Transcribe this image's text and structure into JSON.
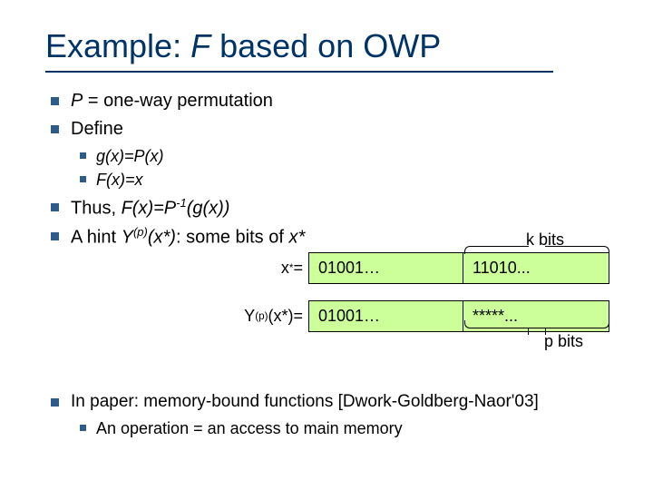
{
  "title_pre": "Example: ",
  "title_F": "F",
  "title_post": " based on OWP",
  "b1_pre": "P",
  "b1_post": " = one-way permutation",
  "b2": "Define",
  "b2a": "g(x)=P(x)",
  "b2b": "F(x)=x",
  "b3_pre": "Thus, ",
  "b3_fx": "F(x)=P",
  "b3_exp": "-1",
  "b3_gx": "(g(x))",
  "b4_pre": "A hint ",
  "b4_y": "Y",
  "b4_p": "(p)",
  "b4_x": "(x*)",
  "b4_post": ": some bits of ",
  "b4_xs": "x*",
  "k_bits": "k bits",
  "p_bits": "p bits",
  "row1_label_x": "x",
  "row1_label_star": "*",
  "row1_label_eq": "=",
  "row1_a": "01001…",
  "row1_b": "11010...",
  "row2_Y": "Y",
  "row2_p": "(p)",
  "row2_rest": "(x*)=",
  "row2_a": "01001…",
  "row2_b": "*****...",
  "colors": {
    "box_bg": "#ccff99",
    "accent": "#003366"
  },
  "foot1": "In paper: memory-bound functions [Dwork-Goldberg-Naor'03]",
  "foot1a": "An operation = an access to main memory"
}
